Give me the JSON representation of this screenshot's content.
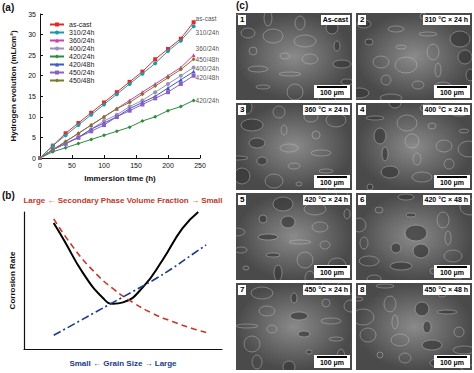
{
  "chart_data": [
    {
      "type": "line",
      "panel_label": "(a)",
      "xlabel": "Immersion time (h)",
      "ylabel": "Hydrogen evolution (mL/cm²)",
      "x": [
        0,
        20,
        40,
        60,
        80,
        100,
        120,
        140,
        160,
        180,
        200,
        220,
        240
      ],
      "xlim": [
        0,
        250
      ],
      "xticks": [
        0,
        50,
        100,
        150,
        200,
        250
      ],
      "ylim": [
        0,
        35
      ],
      "yticks": [
        0,
        5,
        10,
        15,
        20,
        25,
        30,
        35
      ],
      "grid": false,
      "legend": "upper left",
      "series": [
        {
          "name": "as-cast",
          "color": "#e8262b",
          "marker": "square",
          "values": [
            0,
            3,
            6,
            8.5,
            11,
            13.5,
            16,
            18.5,
            21,
            24,
            26.5,
            29,
            33
          ]
        },
        {
          "name": "310/24h",
          "color": "#1f9aa3",
          "marker": "circle",
          "values": [
            0,
            3,
            5.5,
            8,
            10.5,
            13,
            15.5,
            18,
            20.5,
            23,
            26,
            28.5,
            32
          ]
        },
        {
          "name": "360/24h",
          "color": "#d63ca8",
          "marker": "triangle",
          "values": [
            0,
            2,
            4,
            6,
            8,
            10,
            12,
            14,
            16,
            18,
            20,
            22,
            25
          ]
        },
        {
          "name": "400/24h",
          "color": "#9d8fb7",
          "marker": "circle",
          "values": [
            0,
            2,
            3.5,
            5,
            7,
            9,
            10.5,
            12.5,
            14,
            16,
            18,
            20,
            22
          ]
        },
        {
          "name": "420/24h",
          "color": "#2e8b3e",
          "marker": "diamond",
          "values": [
            0,
            1.5,
            2.5,
            3.5,
            4.5,
            5.5,
            6.5,
            7.5,
            9,
            10,
            11.5,
            12.5,
            14
          ]
        },
        {
          "name": "420/48h",
          "color": "#3b5bc4",
          "marker": "triangle",
          "values": [
            0,
            2,
            3.5,
            5,
            7,
            8.5,
            10,
            12,
            13.5,
            15,
            17,
            19,
            21
          ]
        },
        {
          "name": "450/24h",
          "color": "#8b5fc7",
          "marker": "square",
          "values": [
            0,
            2,
            3.5,
            5,
            6.5,
            8,
            10,
            11.5,
            13,
            14.5,
            16,
            18,
            20
          ]
        },
        {
          "name": "450/48h",
          "color": "#7a7a2a",
          "marker": "diamond",
          "values": [
            0,
            2,
            4,
            6,
            8,
            10,
            12,
            13.5,
            15.5,
            17.5,
            19.5,
            21.5,
            24
          ]
        }
      ],
      "annotations": [
        {
          "text": "as-cast",
          "x": 240,
          "y": 34
        },
        {
          "text": "310/24h",
          "x": 240,
          "y": 30.5
        },
        {
          "text": "360/24h",
          "x": 240,
          "y": 26.5
        },
        {
          "text": "450/48h",
          "x": 240,
          "y": 24
        },
        {
          "text": "400/24h",
          "x": 240,
          "y": 21.8
        },
        {
          "text": "420/48h",
          "x": 240,
          "y": 19.6
        },
        {
          "text": "420/24h",
          "x": 240,
          "y": 14
        }
      ]
    },
    {
      "type": "line",
      "panel_label": "(b)",
      "xlabel": "Small ← Grain Size → Large",
      "x2label": "Large ← Secondary Phase Volume Fraction → Small",
      "ylabel": "Corrosion Rate",
      "xlim": [
        0,
        10
      ],
      "ylim": [
        0,
        10
      ],
      "tick_labels": false,
      "grid": false,
      "series": [
        {
          "color": "#000000",
          "line_style": "solid",
          "x": [
            1.5,
            2,
            3,
            4,
            4.5,
            5,
            6,
            7,
            8,
            8.8
          ],
          "values": [
            9.2,
            8,
            5.5,
            3.7,
            3.3,
            3.4,
            4.5,
            6.5,
            8.8,
            10
          ]
        },
        {
          "color": "#c0392b",
          "line_style": "dashed",
          "x": [
            1.5,
            2.5,
            3.5,
            4.5,
            5.5,
            6.5,
            7.5,
            8.5,
            9.2
          ],
          "values": [
            9.5,
            7.4,
            5.7,
            4.4,
            3.4,
            2.6,
            2,
            1.5,
            1.2
          ]
        },
        {
          "color": "#1a3a8a",
          "line_style": "dashdot",
          "x": [
            1.5,
            2.5,
            3.5,
            4.5,
            5.5,
            6.5,
            7.5,
            8.5,
            9.2
          ],
          "values": [
            1,
            1.8,
            2.6,
            3.4,
            4.2,
            5,
            5.9,
            6.9,
            7.6
          ]
        }
      ]
    }
  ],
  "micrograph_panel": {
    "panel_label": "(c)",
    "images": [
      {
        "number": "1",
        "label": "As-cast",
        "scale": "100 μm"
      },
      {
        "number": "2",
        "label": "310 °C × 24 h",
        "scale": "100 μm"
      },
      {
        "number": "3",
        "label": "360 °C × 24 h",
        "scale": "100 μm"
      },
      {
        "number": "4",
        "label": "400 °C × 24 h",
        "scale": "100 μm"
      },
      {
        "number": "5",
        "label": "420 °C × 24 h",
        "scale": "100 μm"
      },
      {
        "number": "6",
        "label": "420 °C × 48 h",
        "scale": "100 μm"
      },
      {
        "number": "7",
        "label": "450 °C × 24 h",
        "scale": "100 μm"
      },
      {
        "number": "8",
        "label": "450 °C × 48 h",
        "scale": "100 μm"
      }
    ]
  }
}
